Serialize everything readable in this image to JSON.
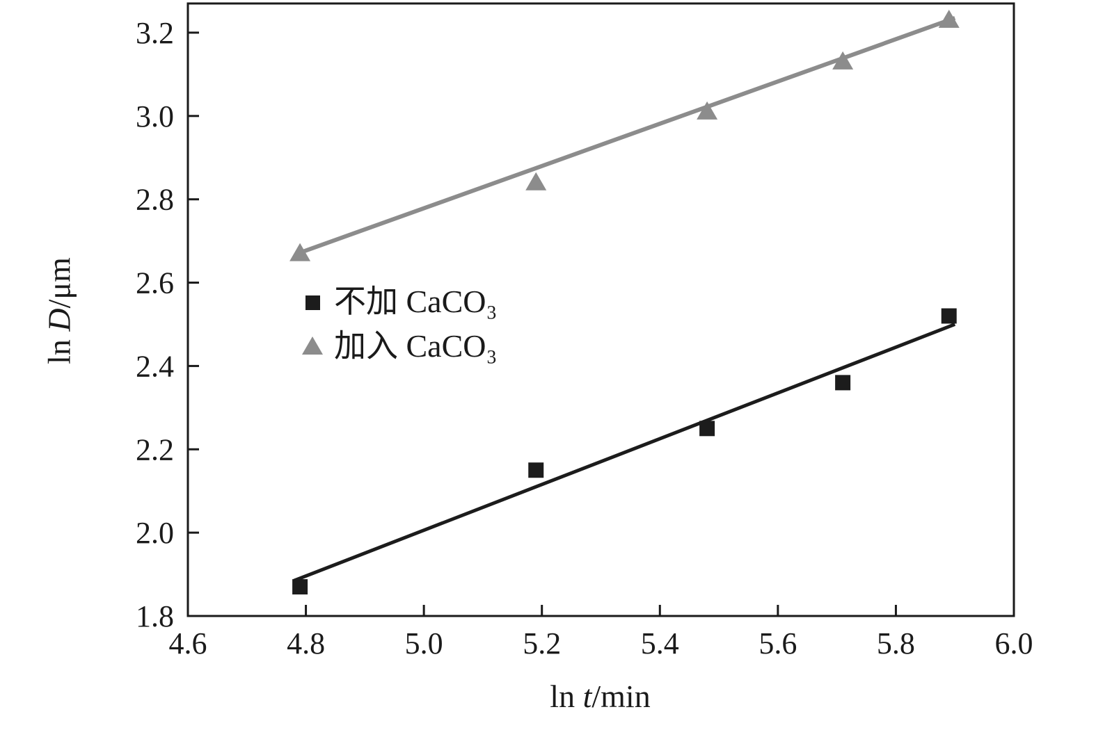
{
  "chart_data": {
    "type": "scatter",
    "title": "",
    "xlabel": "ln t/min",
    "ylabel": "ln D/μm",
    "xlabel_parts": {
      "pre": "ln ",
      "var": "t",
      "post": "/min"
    },
    "ylabel_parts": {
      "pre": "ln ",
      "var": "D",
      "post": "/μm"
    },
    "xlim": [
      4.6,
      6.0
    ],
    "ylim": [
      1.8,
      3.27
    ],
    "xticks": [
      4.6,
      4.8,
      5.0,
      5.2,
      5.4,
      5.6,
      5.8,
      6.0
    ],
    "yticks": [
      1.8,
      2.0,
      2.2,
      2.4,
      2.6,
      2.8,
      3.0,
      3.2
    ],
    "grid": false,
    "legend_position": "inside-left-middle",
    "frame_color": "#1a1a1a",
    "series": [
      {
        "name": "不加 CaCO₃",
        "marker": "square",
        "color": "#1c1c1c",
        "line_width": 5,
        "points": [
          [
            4.79,
            1.87
          ],
          [
            5.19,
            2.15
          ],
          [
            5.48,
            2.25
          ],
          [
            5.71,
            2.36
          ],
          [
            5.89,
            2.52
          ]
        ],
        "fit_line": [
          [
            4.78,
            1.885
          ],
          [
            5.9,
            2.5
          ]
        ]
      },
      {
        "name": "加入 CaCO₃",
        "marker": "triangle",
        "color": "#8c8c8c",
        "line_width": 6,
        "points": [
          [
            4.79,
            2.67
          ],
          [
            5.19,
            2.84
          ],
          [
            5.48,
            3.01
          ],
          [
            5.71,
            3.13
          ],
          [
            5.89,
            3.23
          ]
        ],
        "fit_line": [
          [
            4.79,
            2.672
          ],
          [
            5.9,
            3.235
          ]
        ]
      }
    ]
  }
}
